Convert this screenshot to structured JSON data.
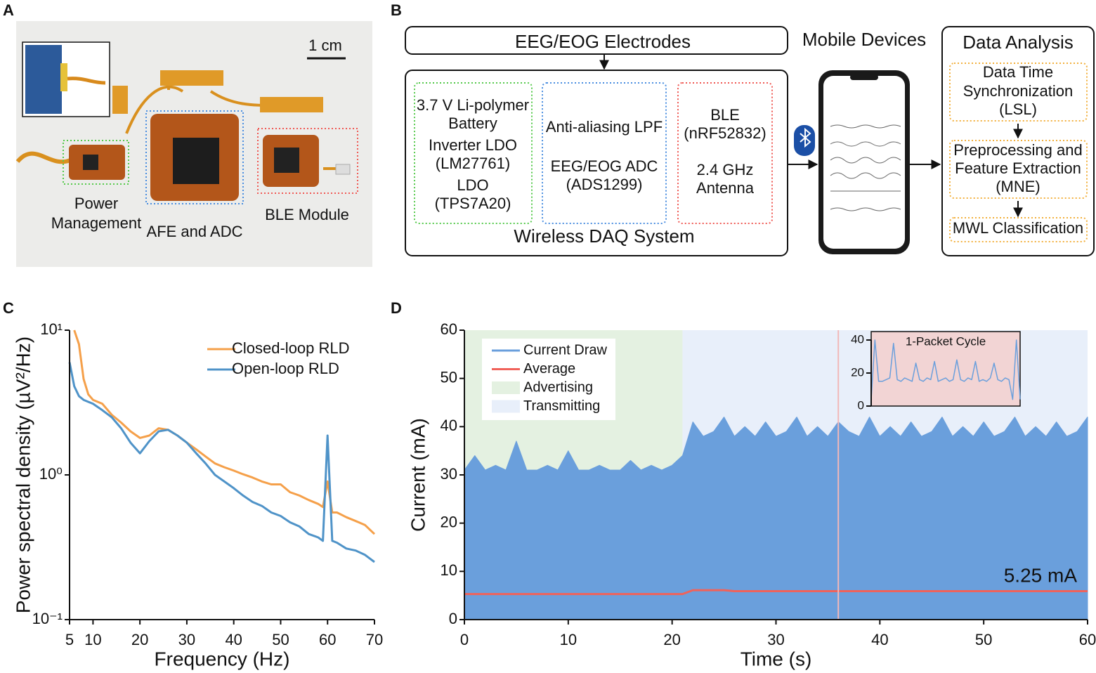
{
  "panel_labels": [
    "A",
    "B",
    "C",
    "D"
  ],
  "photo": {
    "scale_bar": "1 cm",
    "power_label": [
      "Power",
      "Management"
    ],
    "afe_label": "AFE and ADC",
    "ble_label": "BLE Module"
  },
  "diagram": {
    "electrodes": "EEG/EOG Electrodes",
    "daq_title": "Wireless DAQ System",
    "power_box": [
      "3.7 V Li-polymer",
      "Battery",
      "Inverter LDO",
      "(LM27761)",
      "LDO",
      "(TPS7A20)"
    ],
    "afe_box": [
      "Anti-aliasing LPF",
      "EEG/EOG ADC",
      "(ADS1299)"
    ],
    "ble_box": [
      "BLE",
      "(nRF52832)",
      "2.4 GHz",
      "Antenna"
    ],
    "mobile": "Mobile Devices",
    "analysis_title": "Data Analysis",
    "steps": [
      [
        "Data Time",
        "Synchronization",
        "(LSL)"
      ],
      [
        "Preprocessing and",
        "Feature Extraction",
        "(MNE)"
      ],
      [
        "MWL Classification"
      ]
    ]
  },
  "chart_data": [
    {
      "type": "line",
      "x_label": "Frequency (Hz)",
      "y_label": "Power spectral density (µV²/Hz)",
      "log_y": true,
      "xlim": [
        5,
        70
      ],
      "ylim": [
        0.1,
        10
      ],
      "xticks": [
        5,
        10,
        20,
        30,
        40,
        50,
        60,
        70
      ],
      "yticks": [
        {
          "value": 0.1,
          "label": "10⁻¹"
        },
        {
          "value": 1,
          "label": "10⁰"
        },
        {
          "value": 10,
          "label": "10¹"
        }
      ],
      "legend": "upper right",
      "series": [
        {
          "name": "Closed-loop RLD",
          "color": "#f5a04a",
          "x": [
            6,
            7,
            8,
            9,
            10,
            12,
            14,
            16,
            18,
            20,
            22,
            24,
            26,
            28,
            30,
            32,
            34,
            36,
            38,
            40,
            42,
            44,
            46,
            48,
            50,
            52,
            54,
            56,
            58,
            59,
            60,
            61,
            62,
            64,
            66,
            68,
            70
          ],
          "values": [
            10,
            8,
            4.6,
            3.6,
            3.3,
            3.1,
            2.6,
            2.3,
            2.0,
            1.8,
            1.87,
            2.1,
            2.05,
            1.87,
            1.67,
            1.5,
            1.34,
            1.2,
            1.13,
            1.07,
            1.01,
            0.96,
            0.9,
            0.86,
            0.86,
            0.76,
            0.72,
            0.67,
            0.63,
            0.6,
            0.9,
            0.55,
            0.55,
            0.51,
            0.48,
            0.45,
            0.39
          ]
        },
        {
          "name": "Open-loop RLD",
          "color": "#4f93c8",
          "x": [
            5,
            6,
            7,
            8,
            10,
            12,
            14,
            16,
            18,
            20,
            22,
            24,
            26,
            28,
            30,
            32,
            34,
            36,
            38,
            40,
            42,
            44,
            46,
            48,
            50,
            52,
            54,
            56,
            58,
            59,
            60,
            61,
            62,
            64,
            66,
            68,
            70
          ],
          "values": [
            6.0,
            4.1,
            3.5,
            3.3,
            3.1,
            2.8,
            2.5,
            2.1,
            1.67,
            1.41,
            1.71,
            2.0,
            2.05,
            1.87,
            1.67,
            1.41,
            1.2,
            1.0,
            0.9,
            0.81,
            0.72,
            0.65,
            0.61,
            0.55,
            0.52,
            0.47,
            0.44,
            0.39,
            0.37,
            0.35,
            1.87,
            0.35,
            0.34,
            0.31,
            0.3,
            0.28,
            0.25
          ]
        }
      ]
    },
    {
      "type": "line",
      "x_label": "Time (s)",
      "y_label": "Current (mA)",
      "annotation": "5.25 mA",
      "xlim": [
        0,
        60
      ],
      "ylim": [
        0,
        60
      ],
      "xticks": [
        0,
        10,
        20,
        30,
        40,
        50,
        60
      ],
      "yticks": [
        0,
        10,
        20,
        30,
        40,
        50,
        60
      ],
      "legend": "upper left",
      "highlight_x": 36,
      "regions": [
        {
          "name": "Advertising",
          "color": "#e4f1e1",
          "x": [
            0,
            21
          ]
        },
        {
          "name": "Transmitting",
          "color": "#e8effa",
          "x": [
            21,
            60
          ]
        }
      ],
      "series": [
        {
          "name": "Current Draw",
          "color": "#6a9fdc",
          "fill": true,
          "x": [
            0,
            1,
            2,
            3,
            4,
            5,
            6,
            7,
            8,
            9,
            10,
            11,
            12,
            13,
            14,
            15,
            16,
            17,
            18,
            19,
            20,
            21,
            22,
            23,
            24,
            25,
            26,
            27,
            28,
            29,
            30,
            31,
            32,
            33,
            34,
            35,
            36,
            37,
            38,
            39,
            40,
            41,
            42,
            43,
            44,
            45,
            46,
            47,
            48,
            49,
            50,
            51,
            52,
            53,
            54,
            55,
            56,
            57,
            58,
            59,
            60
          ],
          "values": [
            31,
            34,
            31,
            32,
            31,
            37,
            31,
            31,
            32,
            31,
            35,
            31,
            31,
            32,
            31,
            31,
            33,
            31,
            32,
            31,
            32,
            34,
            41,
            38,
            39,
            42,
            38,
            40,
            38,
            41,
            38,
            39,
            42,
            38,
            40,
            38,
            41,
            39,
            38,
            42,
            38,
            40,
            38,
            41,
            38,
            39,
            42,
            38,
            40,
            38,
            41,
            38,
            39,
            42,
            38,
            40,
            38,
            41,
            38,
            39,
            42
          ]
        },
        {
          "name": "Average",
          "color": "#f0625a",
          "x": [
            0,
            21,
            22,
            25,
            26,
            60
          ],
          "values": [
            5.3,
            5.3,
            6.1,
            6.1,
            5.9,
            5.9
          ]
        }
      ]
    },
    {
      "type": "line",
      "title": "1-Packet Cycle",
      "background": "#f2d4d4",
      "ylim": [
        0,
        40
      ],
      "yticks": [
        0,
        20,
        40
      ],
      "series": [
        {
          "name": "Current Draw",
          "color": "#6a9fdc",
          "values": [
            4,
            40,
            15,
            15,
            16,
            17,
            38,
            16,
            15,
            17,
            16,
            15,
            26,
            16,
            15,
            17,
            16,
            27,
            15,
            16,
            17,
            15,
            16,
            28,
            16,
            15,
            17,
            16,
            27,
            15,
            16,
            15,
            17,
            26,
            16,
            15,
            17,
            16,
            4,
            40,
            4
          ]
        }
      ]
    }
  ]
}
